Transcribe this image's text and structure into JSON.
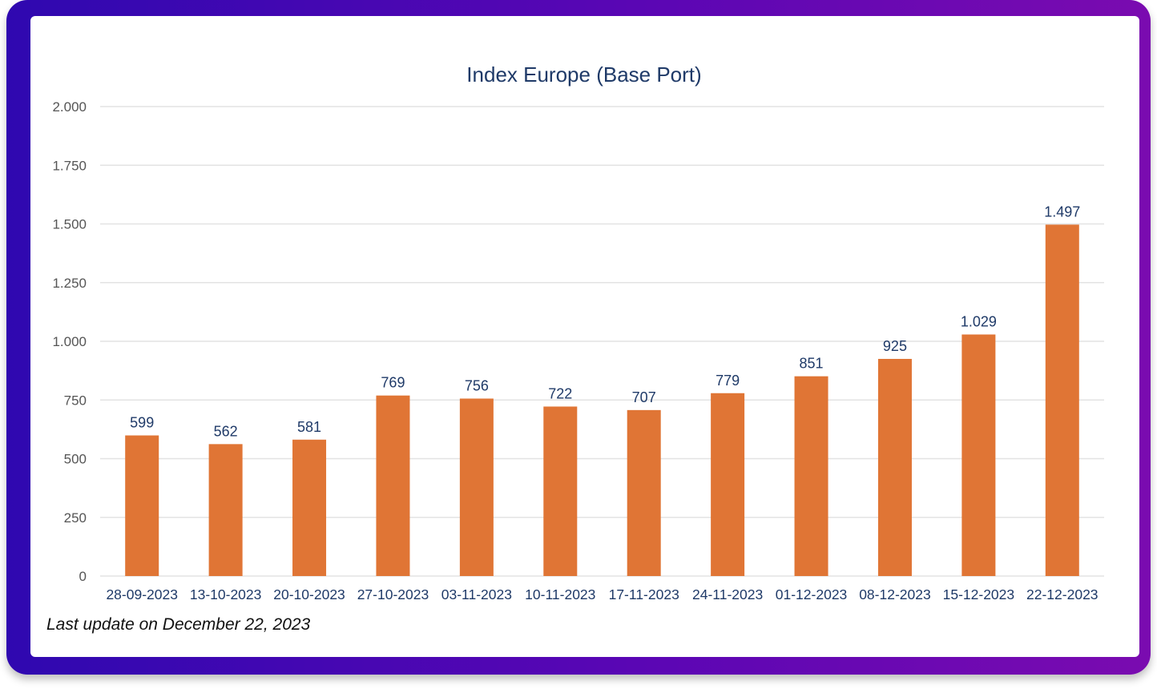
{
  "footnote": "Last update on December 22, 2023",
  "colors": {
    "bar": "#e07535",
    "title": "#1f3a68",
    "data_label": "#1f3a68",
    "x_tick": "#1f3a68",
    "y_tick": "#555555",
    "grid": "#e3e3e3",
    "frame_start": "#2f08b0",
    "frame_end": "#7a0bb0"
  },
  "chart_data": {
    "type": "bar",
    "title": "Index Europe (Base Port)",
    "xlabel": "",
    "ylabel": "",
    "categories": [
      "28-09-2023",
      "13-10-2023",
      "20-10-2023",
      "27-10-2023",
      "03-11-2023",
      "10-11-2023",
      "17-11-2023",
      "24-11-2023",
      "01-12-2023",
      "08-12-2023",
      "15-12-2023",
      "22-12-2023"
    ],
    "values": [
      599,
      562,
      581,
      769,
      756,
      722,
      707,
      779,
      851,
      925,
      1029,
      1497
    ],
    "value_labels": [
      "599",
      "562",
      "581",
      "769",
      "756",
      "722",
      "707",
      "779",
      "851",
      "925",
      "1.029",
      "1.497"
    ],
    "ylim": [
      0,
      2000
    ],
    "yticks": [
      0,
      250,
      500,
      750,
      1000,
      1250,
      1500,
      1750,
      2000
    ],
    "ytick_labels": [
      "0",
      "250",
      "500",
      "750",
      "1.000",
      "1.250",
      "1.500",
      "1.750",
      "2.000"
    ],
    "grid": true,
    "legend": "none"
  }
}
